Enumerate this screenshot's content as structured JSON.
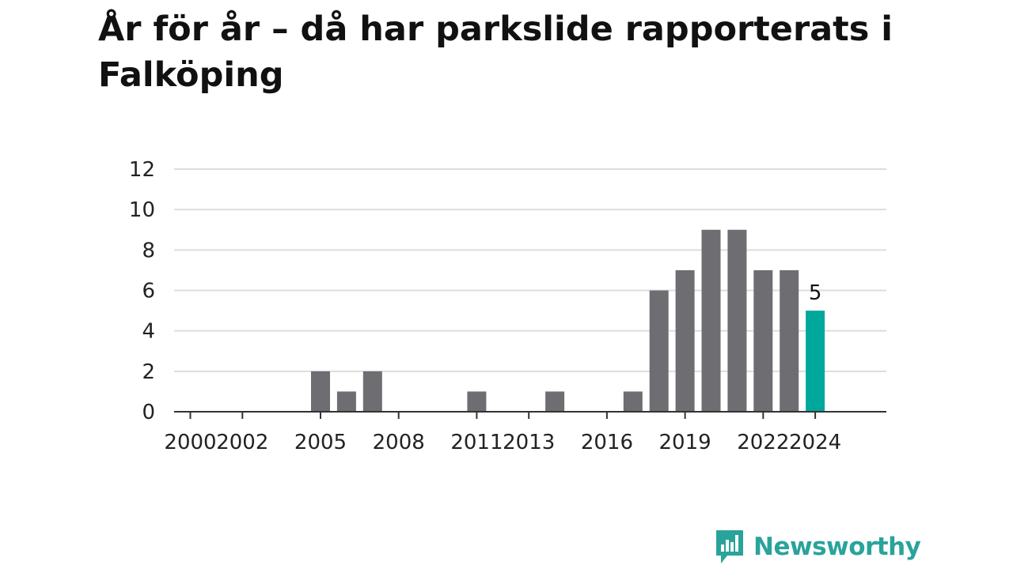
{
  "title": "År för år – då har parkslide rapporterats i Falköping",
  "brand": {
    "name": "Newsworthy",
    "icon": "newsworthy-logo-icon"
  },
  "colors": {
    "bar": "#6e6d72",
    "highlight": "#00a89c",
    "grid": "#dddddd",
    "axis": "#333333",
    "brand": "#2aa39b"
  },
  "chart_data": {
    "type": "bar",
    "title": "År för år – då har parkslide rapporterats i Falköping",
    "xlabel": "",
    "ylabel": "",
    "x": [
      2000,
      2001,
      2002,
      2003,
      2004,
      2005,
      2006,
      2007,
      2008,
      2009,
      2010,
      2011,
      2012,
      2013,
      2014,
      2015,
      2016,
      2017,
      2018,
      2019,
      2020,
      2021,
      2022,
      2023,
      2024
    ],
    "values": [
      0,
      0,
      0,
      0,
      0,
      2,
      1,
      2,
      0,
      0,
      0,
      1,
      0,
      0,
      1,
      0,
      0,
      1,
      6,
      7,
      9,
      9,
      7,
      7,
      5
    ],
    "x_tick_labels": [
      "2000",
      "2002",
      "2005",
      "2008",
      "2011",
      "2013",
      "2016",
      "2019",
      "2022",
      "2024"
    ],
    "y_ticks": [
      0,
      2,
      4,
      6,
      8,
      10,
      12
    ],
    "ylim": [
      0,
      12
    ],
    "grid": true,
    "highlight": {
      "x": 2024,
      "label": "5"
    }
  }
}
